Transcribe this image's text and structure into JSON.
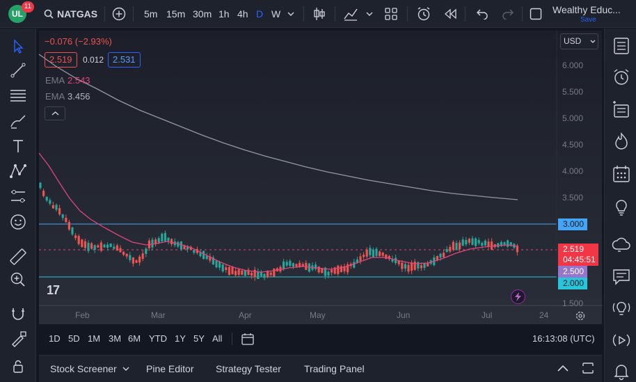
{
  "app": {
    "notification_count": "11",
    "logo_text": "UL"
  },
  "toolbar": {
    "symbol": "NATGAS",
    "timeframes": [
      "5m",
      "15m",
      "30m",
      "1h",
      "4h",
      "D",
      "W"
    ],
    "active_timeframe": "D",
    "account_name": "Wealthy Educ...",
    "save_label": "Save"
  },
  "legend": {
    "change": "−0.076 (−2.93%)",
    "bid": "2.519",
    "spread": "0.012",
    "ask": "2.531",
    "ema1_label": "EMA",
    "ema1_value": "2.543",
    "ema2_label": "EMA",
    "ema2_value": "3.456"
  },
  "price_axis": {
    "currency": "USD",
    "ticks": [
      "6.000",
      "5.500",
      "5.000",
      "4.500",
      "4.000",
      "3.500",
      "1.500"
    ],
    "labels": {
      "upper_line": "3.000",
      "current_price": "2.519",
      "countdown": "04:45:51",
      "mid_line": "2.500",
      "lower_line": "2.000"
    }
  },
  "time_axis": {
    "ticks": [
      "Feb",
      "Mar",
      "Apr",
      "May",
      "Jun",
      "Jul",
      "24"
    ]
  },
  "ranges": {
    "buttons": [
      "1D",
      "5D",
      "1M",
      "3M",
      "6M",
      "YTD",
      "1Y",
      "5Y",
      "All"
    ],
    "clock": "16:13:08 (UTC)"
  },
  "bottom_panel": {
    "tabs": [
      "Stock Screener",
      "Pine Editor",
      "Strategy Tester",
      "Trading Panel"
    ]
  },
  "watermark": "17",
  "colors": {
    "up": "#26a69a",
    "down": "#ef5350",
    "ema_fast": "#e0457b",
    "ema_slow": "#9598a1",
    "accent": "#2962ff"
  }
}
